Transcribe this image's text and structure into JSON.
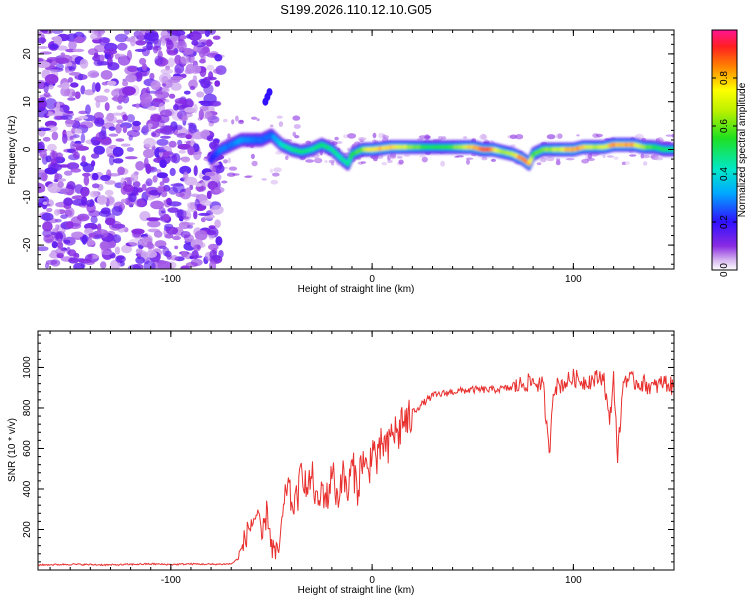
{
  "title": "S199.2026.110.12.10.G05",
  "chart_data": [
    {
      "type": "heatmap",
      "name": "spectrogram",
      "xlabel": "Height of straight line (km)",
      "ylabel": "Frequency (Hz)",
      "xlim": [
        -166,
        150
      ],
      "ylim": [
        -25,
        25
      ],
      "xticks": [
        -100,
        0,
        100
      ],
      "yticks": [
        -20,
        -10,
        0,
        10,
        20
      ],
      "colorbar": {
        "label": "Normalized spectral amplitude",
        "range": [
          0,
          1
        ],
        "ticks": [
          0.0,
          0.2,
          0.4,
          0.6,
          0.8
        ],
        "tick_labels": [
          "0.0",
          "0.2",
          "0.4",
          "0.6",
          "0.8"
        ]
      },
      "noise_region_x": [
        -166,
        -75
      ],
      "burst": {
        "x": [
          -53,
          -52,
          -51
        ],
        "y": [
          10,
          11,
          12
        ],
        "amplitude": 0.2
      },
      "ridge": {
        "x": [
          -80,
          -75,
          -70,
          -65,
          -60,
          -55,
          -50,
          -45,
          -40,
          -35,
          -30,
          -25,
          -20,
          -15,
          -12,
          -10,
          -5,
          0,
          10,
          20,
          30,
          40,
          50,
          55,
          60,
          65,
          70,
          75,
          78,
          80,
          85,
          90,
          95,
          100,
          105,
          110,
          115,
          120,
          125,
          130,
          135,
          140,
          145,
          150
        ],
        "frequency": [
          -2,
          0,
          1,
          2,
          2,
          2,
          3,
          1,
          0,
          -0.5,
          0,
          1,
          0,
          -2,
          -3,
          -1,
          0,
          0,
          0.5,
          0.5,
          0.5,
          0.5,
          0.5,
          0,
          0,
          -0.5,
          -1,
          -2,
          -3,
          -1,
          0,
          0,
          0,
          0,
          0.5,
          0.5,
          0.5,
          1,
          1,
          1,
          0.5,
          0.5,
          0,
          0
        ],
        "amplitude": [
          0.2,
          0.3,
          0.3,
          0.35,
          0.3,
          0.3,
          0.3,
          0.45,
          0.5,
          0.55,
          0.5,
          0.55,
          0.5,
          0.5,
          0.5,
          0.55,
          0.65,
          0.85,
          0.85,
          0.7,
          0.55,
          0.6,
          0.85,
          0.95,
          0.9,
          0.7,
          0.75,
          0.95,
          0.9,
          0.6,
          0.65,
          0.7,
          0.8,
          0.9,
          0.85,
          0.7,
          0.75,
          0.9,
          0.9,
          0.85,
          0.7,
          0.6,
          0.55,
          0.5
        ]
      }
    },
    {
      "type": "line",
      "name": "snr",
      "xlabel": "Height of straight line (km)",
      "ylabel": "SNR (10 * v/v)",
      "xlim": [
        -166,
        150
      ],
      "ylim": [
        0,
        1180
      ],
      "xticks": [
        -100,
        0,
        100
      ],
      "yticks": [
        200,
        400,
        600,
        800,
        1000
      ],
      "color": "#e8312f",
      "x": [
        -166,
        -150,
        -130,
        -110,
        -100,
        -90,
        -80,
        -70,
        -66,
        -63,
        -60,
        -57,
        -55,
        -52,
        -50,
        -47,
        -45,
        -42,
        -40,
        -37,
        -35,
        -32,
        -30,
        -27,
        -25,
        -22,
        -20,
        -17,
        -15,
        -12,
        -10,
        -7,
        -5,
        -2,
        0,
        3,
        5,
        8,
        10,
        13,
        15,
        18,
        20,
        25,
        30,
        40,
        50,
        60,
        70,
        75,
        80,
        85,
        88,
        90,
        95,
        100,
        105,
        110,
        115,
        118,
        120,
        122,
        125,
        130,
        135,
        140,
        145,
        150
      ],
      "y": [
        25,
        28,
        25,
        30,
        27,
        30,
        28,
        30,
        60,
        160,
        230,
        280,
        140,
        300,
        120,
        60,
        200,
        450,
        320,
        350,
        510,
        380,
        480,
        300,
        400,
        350,
        500,
        340,
        480,
        380,
        520,
        400,
        560,
        460,
        620,
        520,
        640,
        580,
        700,
        660,
        750,
        720,
        780,
        820,
        860,
        880,
        890,
        890,
        900,
        920,
        930,
        910,
        560,
        900,
        920,
        950,
        930,
        940,
        960,
        720,
        960,
        560,
        950,
        930,
        920,
        900,
        930,
        900
      ]
    }
  ]
}
